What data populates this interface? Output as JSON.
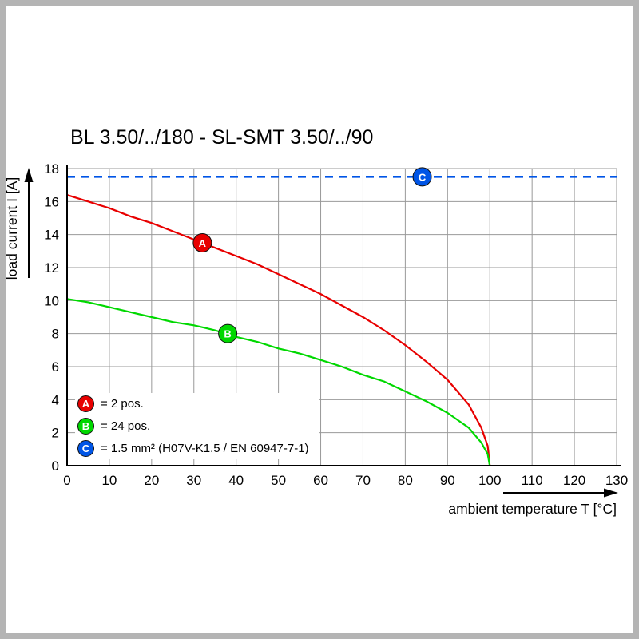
{
  "title": "BL 3.50/../180 - SL-SMT 3.50/../90",
  "frame": {
    "border_color": "#b4b4b4",
    "background": "#ffffff"
  },
  "chart_data": {
    "type": "line",
    "title": "BL 3.50/../180 - SL-SMT 3.50/../90",
    "xlabel": "ambient temperature T [°C]",
    "ylabel": "load current I [A]",
    "xlim": [
      0,
      130
    ],
    "ylim": [
      0,
      18
    ],
    "x_ticks": [
      0,
      10,
      20,
      30,
      40,
      50,
      60,
      70,
      80,
      90,
      100,
      110,
      120,
      130
    ],
    "y_ticks": [
      0,
      2,
      4,
      6,
      8,
      10,
      12,
      14,
      16,
      18
    ],
    "grid": true,
    "grid_color": "#999999",
    "axis_color": "#000000",
    "legend_position": "bottom-left",
    "series": [
      {
        "name": "A",
        "label": "= 2 pos.",
        "color": "#e80000",
        "style": "solid",
        "marker": {
          "x": 32,
          "y": 13.5
        },
        "points": [
          [
            0,
            16.4
          ],
          [
            5,
            16.0
          ],
          [
            10,
            15.6
          ],
          [
            15,
            15.1
          ],
          [
            20,
            14.7
          ],
          [
            25,
            14.2
          ],
          [
            30,
            13.7
          ],
          [
            35,
            13.2
          ],
          [
            40,
            12.7
          ],
          [
            45,
            12.2
          ],
          [
            50,
            11.6
          ],
          [
            55,
            11.0
          ],
          [
            60,
            10.4
          ],
          [
            65,
            9.7
          ],
          [
            70,
            9.0
          ],
          [
            75,
            8.2
          ],
          [
            80,
            7.3
          ],
          [
            85,
            6.3
          ],
          [
            90,
            5.2
          ],
          [
            95,
            3.7
          ],
          [
            98,
            2.3
          ],
          [
            99.5,
            1.2
          ],
          [
            100,
            0
          ]
        ]
      },
      {
        "name": "B",
        "label": "= 24 pos.",
        "color": "#00d800",
        "style": "solid",
        "marker": {
          "x": 38,
          "y": 8.0
        },
        "points": [
          [
            0,
            10.1
          ],
          [
            5,
            9.9
          ],
          [
            10,
            9.6
          ],
          [
            15,
            9.3
          ],
          [
            20,
            9.0
          ],
          [
            25,
            8.7
          ],
          [
            30,
            8.5
          ],
          [
            35,
            8.2
          ],
          [
            40,
            7.8
          ],
          [
            45,
            7.5
          ],
          [
            50,
            7.1
          ],
          [
            55,
            6.8
          ],
          [
            60,
            6.4
          ],
          [
            65,
            6.0
          ],
          [
            70,
            5.5
          ],
          [
            75,
            5.1
          ],
          [
            80,
            4.5
          ],
          [
            85,
            3.9
          ],
          [
            90,
            3.2
          ],
          [
            95,
            2.3
          ],
          [
            98,
            1.4
          ],
          [
            99.5,
            0.7
          ],
          [
            100,
            0
          ]
        ]
      },
      {
        "name": "C",
        "label": "= 1.5 mm² (H07V-K1.5 / EN 60947-7-1)",
        "color": "#0055e6",
        "style": "dashed",
        "marker": {
          "x": 84,
          "y": 17.5
        },
        "points": [
          [
            0,
            17.5
          ],
          [
            130,
            17.5
          ]
        ]
      }
    ]
  }
}
